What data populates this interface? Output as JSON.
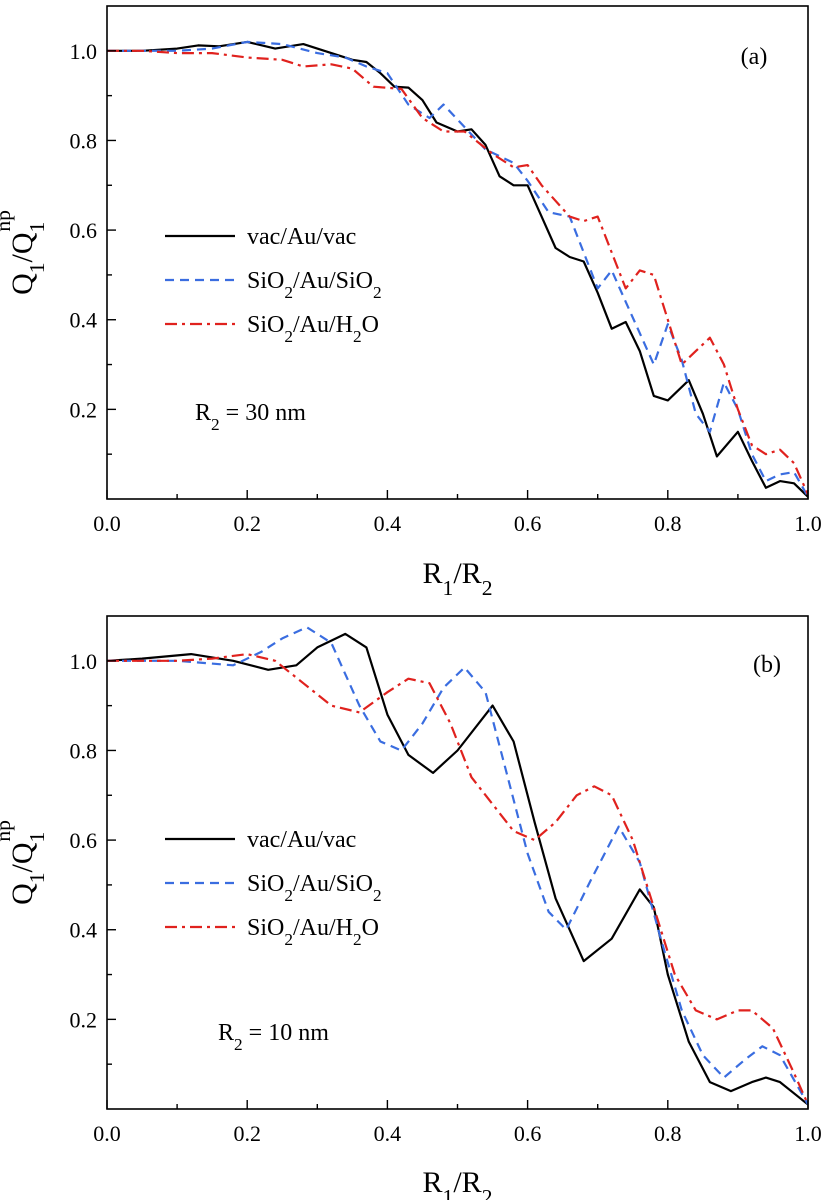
{
  "chart_data": [
    {
      "type": "line",
      "panel_label": "(a)",
      "annotation": {
        "text": "R",
        "sub": "2",
        "rest": " = 30 nm"
      },
      "xlabel": {
        "main": "R",
        "sub1": "1",
        "mid": "/R",
        "sub2": "2"
      },
      "ylabel": {
        "main": "Q",
        "sub1": "1",
        "mid": "/Q",
        "sub2": "1",
        "sup": "np"
      },
      "xlim": [
        0.0,
        1.0
      ],
      "ylim": [
        0.0,
        1.1
      ],
      "xticks": [
        "0.0",
        "0.2",
        "0.4",
        "0.6",
        "0.8",
        "1.0"
      ],
      "yticks": [
        "0.2",
        "0.4",
        "0.6",
        "0.8",
        "1.0"
      ],
      "legend": [
        {
          "parts": [
            [
              "vac/Au/vac",
              ""
            ]
          ]
        },
        {
          "parts": [
            [
              "SiO",
              ""
            ],
            [
              "2",
              "sub"
            ],
            [
              "/Au/SiO",
              ""
            ],
            [
              "2",
              "sub"
            ]
          ]
        },
        {
          "parts": [
            [
              "SiO",
              ""
            ],
            [
              "2",
              "sub"
            ],
            [
              "/Au/H",
              ""
            ],
            [
              "2",
              "sub"
            ],
            [
              "O",
              ""
            ]
          ]
        }
      ],
      "series": [
        {
          "color": "#000000",
          "dash": "solid",
          "x": [
            0.0,
            0.05,
            0.1,
            0.13,
            0.16,
            0.2,
            0.24,
            0.28,
            0.31,
            0.35,
            0.37,
            0.39,
            0.41,
            0.43,
            0.45,
            0.47,
            0.5,
            0.52,
            0.54,
            0.56,
            0.58,
            0.6,
            0.62,
            0.64,
            0.66,
            0.68,
            0.7,
            0.72,
            0.74,
            0.76,
            0.78,
            0.8,
            0.83,
            0.85,
            0.87,
            0.9,
            0.92,
            0.94,
            0.96,
            0.98,
            1.0
          ],
          "y": [
            1.0,
            1.0,
            1.005,
            1.012,
            1.01,
            1.02,
            1.005,
            1.015,
            1.0,
            0.98,
            0.975,
            0.95,
            0.92,
            0.918,
            0.89,
            0.84,
            0.82,
            0.825,
            0.79,
            0.72,
            0.7,
            0.7,
            0.63,
            0.56,
            0.54,
            0.53,
            0.46,
            0.38,
            0.395,
            0.33,
            0.23,
            0.22,
            0.265,
            0.19,
            0.095,
            0.15,
            0.085,
            0.025,
            0.04,
            0.035,
            0.005
          ]
        },
        {
          "color": "#3a6de0",
          "dash": "dashed",
          "x": [
            0.0,
            0.1,
            0.15,
            0.2,
            0.25,
            0.3,
            0.34,
            0.37,
            0.4,
            0.43,
            0.46,
            0.48,
            0.51,
            0.54,
            0.58,
            0.6,
            0.63,
            0.66,
            0.68,
            0.7,
            0.72,
            0.74,
            0.76,
            0.78,
            0.8,
            0.82,
            0.84,
            0.86,
            0.88,
            0.9,
            0.92,
            0.94,
            0.96,
            0.98,
            1.0
          ],
          "y": [
            1.0,
            1.0,
            1.005,
            1.02,
            1.015,
            0.995,
            0.985,
            0.965,
            0.95,
            0.88,
            0.85,
            0.88,
            0.83,
            0.78,
            0.75,
            0.71,
            0.64,
            0.63,
            0.55,
            0.47,
            0.51,
            0.44,
            0.37,
            0.3,
            0.39,
            0.31,
            0.19,
            0.15,
            0.26,
            0.2,
            0.1,
            0.04,
            0.055,
            0.06,
            0.005
          ]
        },
        {
          "color": "#e0221e",
          "dash": "dashdot",
          "x": [
            0.0,
            0.05,
            0.1,
            0.15,
            0.2,
            0.25,
            0.28,
            0.32,
            0.35,
            0.38,
            0.42,
            0.45,
            0.48,
            0.51,
            0.55,
            0.58,
            0.6,
            0.62,
            0.66,
            0.68,
            0.7,
            0.72,
            0.74,
            0.76,
            0.78,
            0.8,
            0.82,
            0.84,
            0.86,
            0.88,
            0.9,
            0.92,
            0.94,
            0.96,
            0.98,
            1.0
          ],
          "y": [
            1.0,
            1.0,
            0.995,
            0.995,
            0.985,
            0.98,
            0.965,
            0.97,
            0.96,
            0.92,
            0.915,
            0.85,
            0.82,
            0.82,
            0.77,
            0.74,
            0.745,
            0.7,
            0.63,
            0.62,
            0.63,
            0.55,
            0.47,
            0.51,
            0.5,
            0.4,
            0.3,
            0.33,
            0.36,
            0.3,
            0.2,
            0.12,
            0.1,
            0.11,
            0.08,
            0.01
          ]
        }
      ]
    },
    {
      "type": "line",
      "panel_label": "(b)",
      "annotation": {
        "text": "R",
        "sub": "2",
        "rest": " = 10 nm"
      },
      "xlabel": {
        "main": "R",
        "sub1": "1",
        "mid": "/R",
        "sub2": "2"
      },
      "ylabel": {
        "main": "Q",
        "sub1": "1",
        "mid": "/Q",
        "sub2": "1",
        "sup": "np"
      },
      "xlim": [
        0.0,
        1.0
      ],
      "ylim": [
        0.0,
        1.1
      ],
      "xticks": [
        "0.0",
        "0.2",
        "0.4",
        "0.6",
        "0.8",
        "1.0"
      ],
      "yticks": [
        "0.2",
        "0.4",
        "0.6",
        "0.8",
        "1.0"
      ],
      "legend": [
        {
          "parts": [
            [
              "vac/Au/vac",
              ""
            ]
          ]
        },
        {
          "parts": [
            [
              "SiO",
              ""
            ],
            [
              "2",
              "sub"
            ],
            [
              "/Au/SiO",
              ""
            ],
            [
              "2",
              "sub"
            ]
          ]
        },
        {
          "parts": [
            [
              "SiO",
              ""
            ],
            [
              "2",
              "sub"
            ],
            [
              "/Au/H",
              ""
            ],
            [
              "2",
              "sub"
            ],
            [
              "O",
              ""
            ]
          ]
        }
      ],
      "series": [
        {
          "color": "#000000",
          "dash": "solid",
          "x": [
            0.0,
            0.05,
            0.12,
            0.18,
            0.23,
            0.27,
            0.3,
            0.34,
            0.37,
            0.4,
            0.43,
            0.465,
            0.5,
            0.55,
            0.58,
            0.61,
            0.64,
            0.68,
            0.72,
            0.76,
            0.78,
            0.8,
            0.83,
            0.86,
            0.89,
            0.92,
            0.94,
            0.96,
            0.98,
            1.0
          ],
          "y": [
            1.0,
            1.005,
            1.015,
            1.0,
            0.98,
            0.99,
            1.03,
            1.06,
            1.03,
            0.88,
            0.79,
            0.75,
            0.8,
            0.9,
            0.82,
            0.64,
            0.47,
            0.33,
            0.38,
            0.49,
            0.45,
            0.3,
            0.15,
            0.06,
            0.04,
            0.06,
            0.07,
            0.06,
            0.035,
            0.01
          ]
        },
        {
          "color": "#3a6de0",
          "dash": "dashed",
          "x": [
            0.0,
            0.1,
            0.18,
            0.22,
            0.25,
            0.285,
            0.32,
            0.36,
            0.39,
            0.42,
            0.45,
            0.48,
            0.51,
            0.54,
            0.57,
            0.6,
            0.63,
            0.655,
            0.69,
            0.73,
            0.76,
            0.79,
            0.82,
            0.85,
            0.88,
            0.91,
            0.935,
            0.96,
            1.0
          ],
          "y": [
            1.0,
            1.0,
            0.99,
            1.02,
            1.05,
            1.075,
            1.04,
            0.9,
            0.82,
            0.8,
            0.86,
            0.94,
            0.985,
            0.93,
            0.75,
            0.57,
            0.44,
            0.4,
            0.51,
            0.63,
            0.55,
            0.38,
            0.22,
            0.12,
            0.07,
            0.11,
            0.14,
            0.12,
            0.01
          ]
        },
        {
          "color": "#e0221e",
          "dash": "dashdot",
          "x": [
            0.0,
            0.1,
            0.15,
            0.2,
            0.24,
            0.28,
            0.32,
            0.36,
            0.4,
            0.43,
            0.46,
            0.49,
            0.52,
            0.55,
            0.58,
            0.61,
            0.64,
            0.67,
            0.695,
            0.72,
            0.75,
            0.78,
            0.81,
            0.84,
            0.87,
            0.9,
            0.92,
            0.95,
            0.98,
            1.0
          ],
          "y": [
            1.0,
            1.0,
            1.005,
            1.015,
            1.0,
            0.95,
            0.9,
            0.885,
            0.93,
            0.96,
            0.95,
            0.86,
            0.74,
            0.68,
            0.62,
            0.6,
            0.64,
            0.7,
            0.72,
            0.7,
            0.6,
            0.45,
            0.3,
            0.22,
            0.2,
            0.22,
            0.22,
            0.18,
            0.08,
            0.01
          ]
        }
      ]
    }
  ]
}
